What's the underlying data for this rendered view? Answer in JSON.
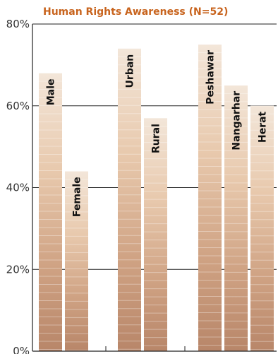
{
  "chart_data": {
    "type": "bar",
    "title": "Human Rights Awareness (N=52)",
    "xlabel": "",
    "ylabel": "",
    "ylim": [
      0,
      80
    ],
    "yticks": [
      "0%",
      "20%",
      "40%",
      "60%",
      "80%"
    ],
    "grid": true,
    "groups": [
      {
        "categories": [
          "Male",
          "Female"
        ],
        "values": [
          68,
          44
        ]
      },
      {
        "categories": [
          "Urban",
          "Rural"
        ],
        "values": [
          74,
          57
        ]
      },
      {
        "categories": [
          "Peshawar",
          "Nangarhar",
          "Herat"
        ],
        "values": [
          75,
          65,
          60
        ]
      }
    ],
    "colors": {
      "bar_light": "#f2e4d6",
      "bar_mid": "#e6c2a4",
      "bar_dark": "#b8866a",
      "title": "#c8641e"
    }
  }
}
